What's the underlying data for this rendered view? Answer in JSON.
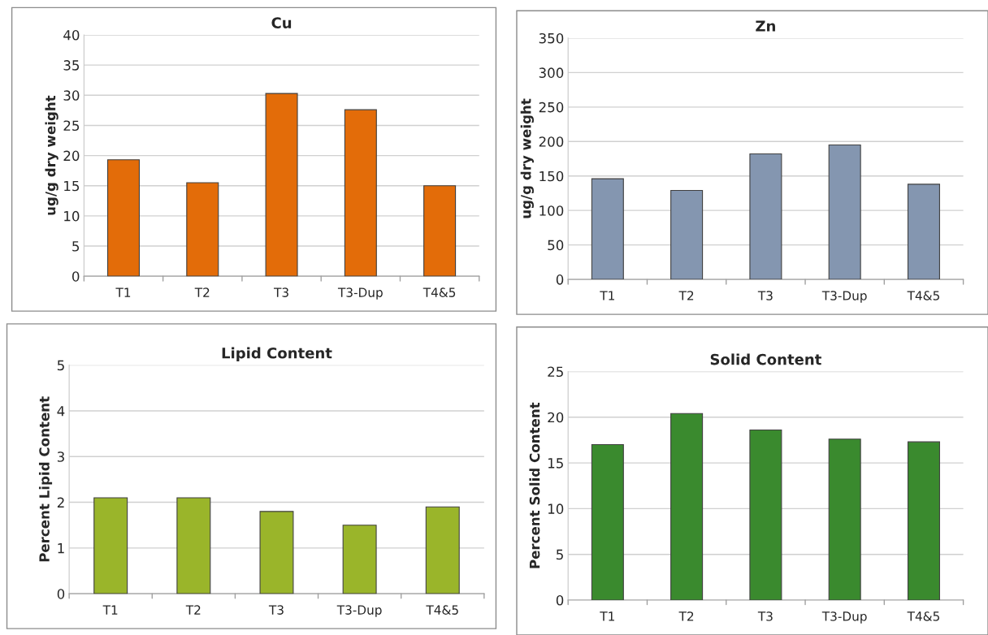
{
  "chart_data": [
    {
      "type": "bar",
      "title": "Cu",
      "ylabel": "ug/g dry weight",
      "categories": [
        "T1",
        "T2",
        "T3",
        "T3-Dup",
        "T4&5"
      ],
      "values": [
        19.3,
        15.5,
        30.3,
        27.6,
        15.0
      ],
      "color": "#e36c09",
      "ylim": [
        0,
        40
      ],
      "yticks": [
        0,
        5,
        10,
        15,
        20,
        25,
        30,
        35,
        40
      ],
      "grid": "y",
      "legend": false
    },
    {
      "type": "bar",
      "title": "Zn",
      "ylabel": "ug/g dry weight",
      "categories": [
        "T1",
        "T2",
        "T3",
        "T3-Dup",
        "T4&5"
      ],
      "values": [
        146,
        129,
        182,
        195,
        138
      ],
      "color": "#8496b0",
      "ylim": [
        0,
        350
      ],
      "yticks": [
        0,
        50,
        100,
        150,
        200,
        250,
        300,
        350
      ],
      "grid": "y",
      "legend": false
    },
    {
      "type": "bar",
      "title": "Lipid Content",
      "ylabel": "Percent Lipid Content",
      "categories": [
        "T1",
        "T2",
        "T3",
        "T3-Dup",
        "T4&5"
      ],
      "values": [
        2.1,
        2.1,
        1.8,
        1.5,
        1.9
      ],
      "color": "#9ab52a",
      "ylim": [
        0,
        5
      ],
      "yticks": [
        0,
        1,
        2,
        3,
        4,
        5
      ],
      "grid": "y",
      "legend": false
    },
    {
      "type": "bar",
      "title": "Solid Content",
      "ylabel": "Percent Solid Content",
      "categories": [
        "T1",
        "T2",
        "T3",
        "T3-Dup",
        "T4&5"
      ],
      "values": [
        17.0,
        20.4,
        18.6,
        17.6,
        17.3
      ],
      "color": "#3a8a2e",
      "ylim": [
        0,
        25
      ],
      "yticks": [
        0,
        5,
        10,
        15,
        20,
        25
      ],
      "grid": "y",
      "legend": false
    }
  ]
}
